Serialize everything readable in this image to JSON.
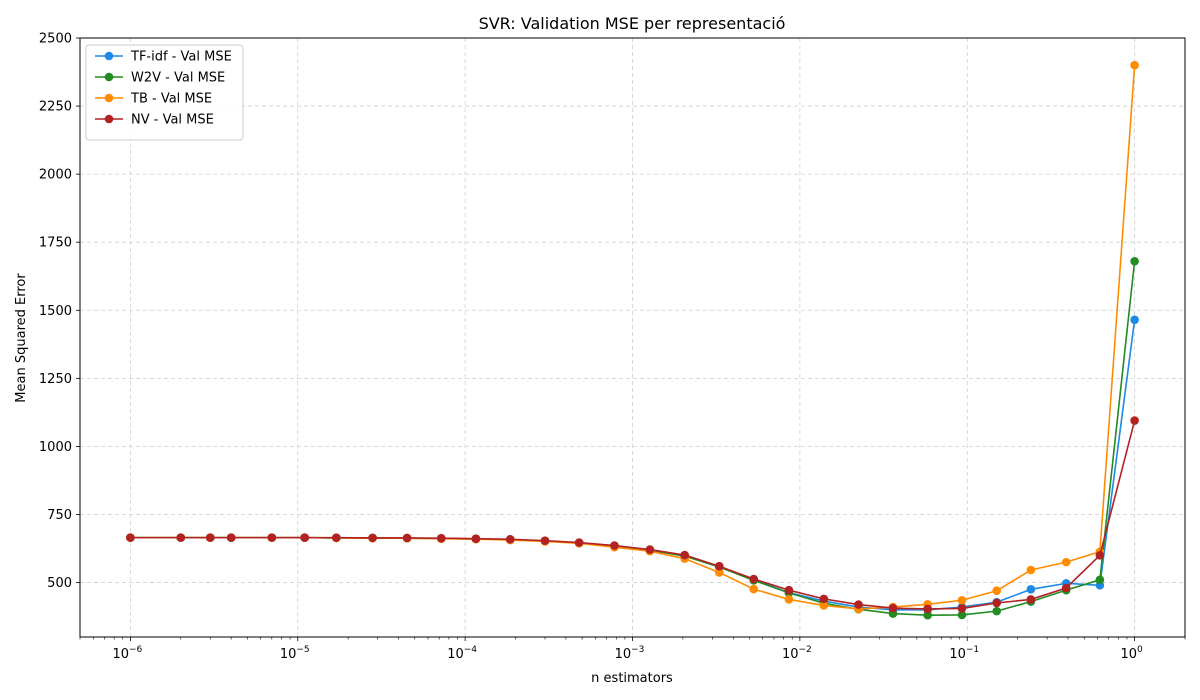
{
  "chart_data": {
    "type": "line",
    "title": "SVR: Validation MSE per representació",
    "xlabel": "n estimators",
    "ylabel": "Mean Squared Error",
    "xscale": "log",
    "xlim": [
      5e-07,
      2
    ],
    "ylim": [
      300,
      2500
    ],
    "grid": true,
    "legend_position": "upper-left",
    "x": [
      1e-06,
      2e-06,
      3e-06,
      4e-06,
      7e-06,
      1.1e-05,
      1.7e-05,
      2.8e-05,
      4.5e-05,
      7.2e-05,
      0.000116,
      0.000186,
      0.0003,
      0.00048,
      0.00078,
      0.00127,
      0.00205,
      0.0033,
      0.0053,
      0.0086,
      0.0139,
      0.0224,
      0.036,
      0.058,
      0.093,
      0.15,
      0.24,
      0.39,
      0.62,
      1.0
    ],
    "x_tick_values": [
      1e-06,
      1e-05,
      0.0001,
      0.001,
      0.01,
      0.1,
      1
    ],
    "x_tick_labels": [
      {
        "base": "10",
        "exp": "−6"
      },
      {
        "base": "10",
        "exp": "−5"
      },
      {
        "base": "10",
        "exp": "−4"
      },
      {
        "base": "10",
        "exp": "−3"
      },
      {
        "base": "10",
        "exp": "−2"
      },
      {
        "base": "10",
        "exp": "−1"
      },
      {
        "base": "10",
        "exp": "0"
      }
    ],
    "y_ticks": [
      500,
      750,
      1000,
      1250,
      1500,
      1750,
      2000,
      2250,
      2500
    ],
    "series": [
      {
        "name": "TF-idf - Val MSE",
        "color": "#1e88e5",
        "values": [
          665,
          665,
          665,
          665,
          665,
          665,
          664,
          664,
          663,
          662,
          660,
          658,
          653,
          646,
          635,
          620,
          598,
          558,
          510,
          463,
          432,
          410,
          400,
          400,
          410,
          428,
          475,
          497,
          490,
          1465
        ]
      },
      {
        "name": "W2V - Val MSE",
        "color": "#228b22",
        "values": [
          665,
          665,
          665,
          665,
          665,
          665,
          664,
          664,
          663,
          662,
          660,
          658,
          652,
          645,
          634,
          619,
          597,
          557,
          508,
          462,
          424,
          402,
          386,
          380,
          381,
          395,
          430,
          472,
          510,
          1680
        ]
      },
      {
        "name": "TB - Val MSE",
        "color": "#ff8c00",
        "values": [
          665,
          665,
          665,
          665,
          665,
          665,
          664,
          663,
          663,
          661,
          659,
          656,
          651,
          644,
          630,
          615,
          588,
          537,
          476,
          438,
          416,
          403,
          410,
          420,
          435,
          470,
          546,
          575,
          613,
          2400
        ]
      },
      {
        "name": "NV - Val MSE",
        "color": "#b22222",
        "values": [
          665,
          665,
          665,
          665,
          665,
          665,
          665,
          664,
          664,
          663,
          661,
          659,
          654,
          647,
          636,
          621,
          601,
          560,
          513,
          472,
          440,
          419,
          406,
          403,
          405,
          425,
          438,
          480,
          600,
          1095
        ]
      }
    ]
  }
}
